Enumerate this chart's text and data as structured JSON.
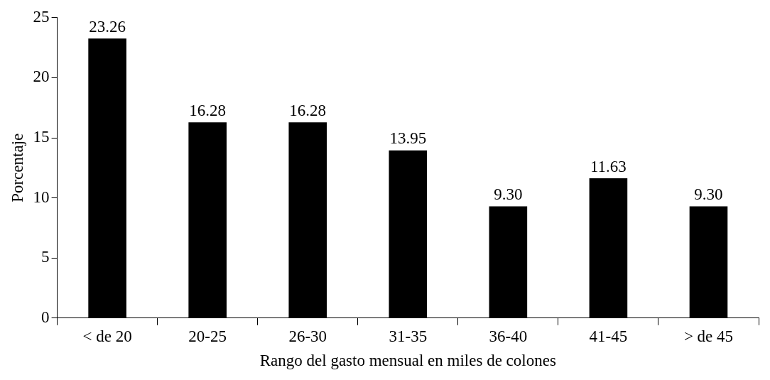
{
  "chart_data": {
    "type": "bar",
    "xlabel": "Rango del gasto mensual en miles de colones",
    "ylabel": "Porcentaje",
    "categories": [
      "< de 20",
      "20-25",
      "26-30",
      "31-35",
      "36-40",
      "41-45",
      "> de 45"
    ],
    "values": [
      23.26,
      16.28,
      16.28,
      13.95,
      9.3,
      11.63,
      9.3
    ],
    "value_labels": [
      "23.26",
      "16.28",
      "16.28",
      "13.95",
      "9.30",
      "11.63",
      "9.30"
    ],
    "color": "#000000",
    "ylim": [
      0,
      25
    ],
    "yticks": [
      0,
      5,
      10,
      15,
      20,
      25
    ],
    "grid": false,
    "legend": false
  }
}
